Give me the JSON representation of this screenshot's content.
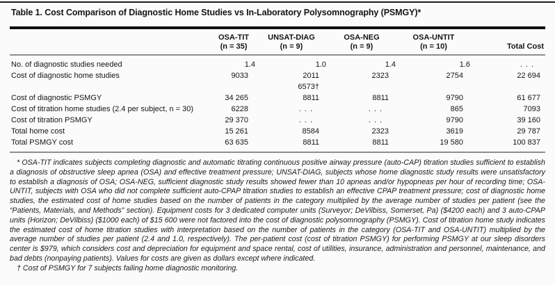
{
  "table": {
    "title": "Table 1. Cost Comparison of Diagnostic Home Studies vs In-Laboratory Polysomnography (PSMGY)*",
    "columns": [
      {
        "line1": "",
        "line2": ""
      },
      {
        "line1": "OSA-TIT",
        "line2": "(n = 35)"
      },
      {
        "line1": "UNSAT-DIAG",
        "line2": "(n = 9)"
      },
      {
        "line1": "OSA-NEG",
        "line2": "(n = 9)"
      },
      {
        "line1": "OSA-UNTIT",
        "line2": "(n = 10)"
      },
      {
        "line1": "",
        "line2": "Total Cost"
      }
    ],
    "rows": [
      {
        "label": "No. of diagnostic studies needed",
        "values": [
          "1.4",
          "1.0",
          "1.4",
          "1.6",
          ". . ."
        ]
      },
      {
        "label": "Cost of diagnostic home studies",
        "values": [
          "9033",
          [
            "2011",
            "6573†"
          ],
          "2323",
          "2754",
          "22 694"
        ]
      },
      {
        "label": "Cost of diagnostic PSMGY",
        "values": [
          "34 265",
          "8811",
          "8811",
          "9790",
          "61 677"
        ]
      },
      {
        "label": "Cost of titration home studies (2.4 per subject, n = 30)",
        "values": [
          "6228",
          ". . .",
          ". . .",
          "865",
          "7093"
        ]
      },
      {
        "label": "Cost of titration PSMGY",
        "values": [
          "29 370",
          ". . .",
          ". . .",
          "9790",
          "39 160"
        ]
      },
      {
        "label": "Total home cost",
        "values": [
          "15 261",
          "8584",
          "2323",
          "3619",
          "29 787"
        ]
      },
      {
        "label": "Total PSMGY cost",
        "values": [
          "63 635",
          "8811",
          "8811",
          "19 580",
          "100 837"
        ]
      }
    ],
    "footnotes": {
      "asterisk": "* OSA-TIT indicates subjects completing diagnostic and automatic titrating continuous positive airway pressure (auto-CAP) titration studies sufficient to establish a diagnosis of obstructive sleep apnea (OSA) and effective treatment pressure; UNSAT-DIAG, subjects whose home diagnostic study results were unsatisfactory to establish a diagnosis of OSA; OSA-NEG, sufficient diagnostic study results showed fewer than 10 apneas and/or hypopneas per hour of recording time; OSA-UNTIT, subjects with OSA who did not complete sufficient auto-CPAP titration studies to establish an effective CPAP treatment pressure; cost of diagnostic home studies, the estimated cost of home studies based on the number of patients in the category multiplied by the average number of studies per patient (see the “Patients, Materials, and Methods” section). Equipment costs for 3 dedicated computer units (Surveyor; DeVilbiss, Somerset, Pa) ($4200 each) and 3 auto-CPAP units (Horizon; DeVilbiss) ($1000 each) of $15 600 were not factored into the cost of diagnostic polysomnography (PSMGY). Cost of titration home study indicates the estimated cost of home titration studies with interpretation based on the number of patients in the category (OSA-TIT and OSA-UNTIT) multiplied by the average number of studies per patient (2.4 and 1.0, respectively). The per-patient cost (cost of titration PSMGY) for performing PSMGY at our sleep disorders center is $979, which considers cost and depreciation for equipment and space rental, cost of utilities, insurance, administration and personnel, maintenance, and bad debts (nonpaying patients). Values for costs are given as dollars except where indicated.",
      "dagger": "† Cost of PSMGY for 7 subjects failing home diagnostic monitoring."
    }
  },
  "chart_data": {
    "type": "table",
    "title": "Table 1. Cost Comparison of Diagnostic Home Studies vs In-Laboratory Polysomnography (PSMGY)",
    "columns": [
      "",
      "OSA-TIT (n = 35)",
      "UNSAT-DIAG (n = 9)",
      "OSA-NEG (n = 9)",
      "OSA-UNTIT (n = 10)",
      "Total Cost"
    ],
    "rows": [
      [
        "No. of diagnostic studies needed",
        1.4,
        1.0,
        1.4,
        1.6,
        null
      ],
      [
        "Cost of diagnostic home studies",
        9033,
        "2011 / 6573 (†)",
        2323,
        2754,
        22694
      ],
      [
        "Cost of diagnostic PSMGY",
        34265,
        8811,
        8811,
        9790,
        61677
      ],
      [
        "Cost of titration home studies (2.4 per subject, n = 30)",
        6228,
        null,
        null,
        865,
        7093
      ],
      [
        "Cost of titration PSMGY",
        29370,
        null,
        null,
        9790,
        39160
      ],
      [
        "Total home cost",
        15261,
        8584,
        2323,
        3619,
        29787
      ],
      [
        "Total PSMGY cost",
        63635,
        8811,
        8811,
        19580,
        100837
      ]
    ]
  }
}
